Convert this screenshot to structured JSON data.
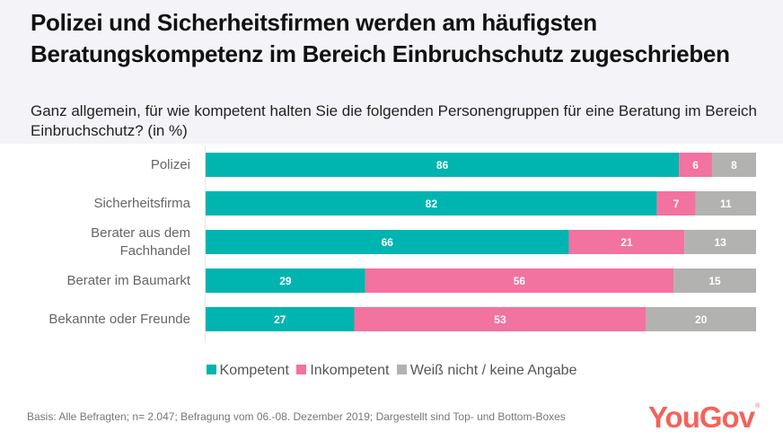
{
  "header": {
    "title": "Polizei und Sicherheitsfirmen werden am häufigsten Beratungskompetenz im Bereich Einbruchschutz zugeschrieben",
    "subtitle": "Ganz allgemein, für wie kompetent halten Sie die folgenden Personengruppen für eine Beratung im Bereich Einbruchschutz? (in %)"
  },
  "colors": {
    "kompetent": "#00B5B0",
    "inkompetent": "#F272A0",
    "weiss_nicht": "#B2B3B0",
    "brand": "#F3635A"
  },
  "chart_data": {
    "type": "bar",
    "orientation": "horizontal",
    "stacked": true,
    "title": "Polizei und Sicherheitsfirmen werden am häufigsten Beratungskompetenz im Bereich Einbruchschutz zugeschrieben",
    "subtitle": "Ganz allgemein, für wie kompetent halten Sie die folgenden Personengruppen für eine Beratung im Bereich Einbruchschutz? (in %)",
    "xlabel": "",
    "ylabel": "",
    "xlim": [
      0,
      100
    ],
    "grid": false,
    "legend_position": "bottom",
    "categories": [
      "Polizei",
      "Sicherheitsfirma",
      "Berater aus dem Fachhandel",
      "Berater im Baumarkt",
      "Bekannte oder Freunde"
    ],
    "series": [
      {
        "name": "Kompetent",
        "color": "#00B5B0",
        "values": [
          86,
          82,
          66,
          29,
          27
        ]
      },
      {
        "name": "Inkompetent",
        "color": "#F272A0",
        "values": [
          6,
          7,
          21,
          56,
          53
        ]
      },
      {
        "name": "Weiß nicht / keine Angabe",
        "color": "#B2B3B0",
        "values": [
          8,
          11,
          13,
          15,
          20
        ]
      }
    ]
  },
  "category_labels": [
    [
      "Polizei"
    ],
    [
      "Sicherheitsfirma"
    ],
    [
      "Berater aus dem",
      "Fachhandel"
    ],
    [
      "Berater im Baumarkt"
    ],
    [
      "Bekannte oder Freunde"
    ]
  ],
  "legend": [
    {
      "label": "Kompetent",
      "color": "#00B5B0"
    },
    {
      "label": "Inkompetent",
      "color": "#F272A0"
    },
    {
      "label": "Weiß nicht / keine Angabe",
      "color": "#B2B3B0"
    }
  ],
  "footer": {
    "note": "Basis: Alle Befragten; n= 2.047; Befragung vom 06.-08. Dezember 2019; Dargestellt sind Top- und Bottom-Boxes",
    "logo": "YouGov",
    "logo_mark": "®"
  }
}
